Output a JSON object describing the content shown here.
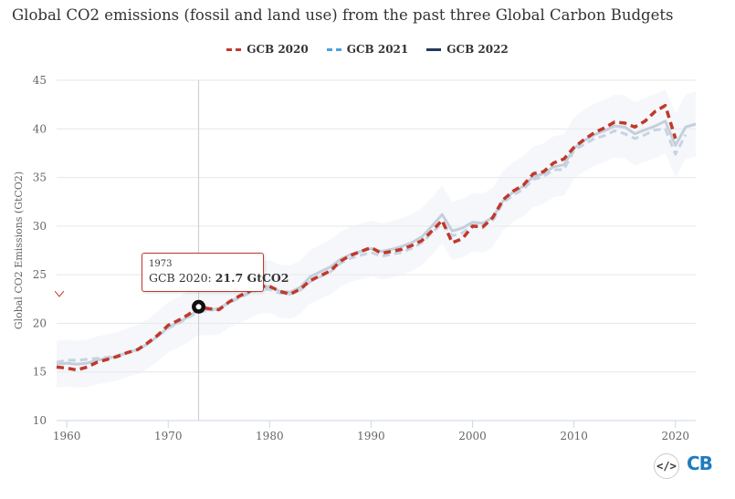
{
  "title": "Global CO2 emissions (fossil and land use) from the past three Global Carbon Budgets",
  "legend": [
    {
      "label": "GCB 2020",
      "color": "#c0392b",
      "style": "dashed"
    },
    {
      "label": "GCB 2021",
      "color": "#4aa3df",
      "style": "dashed"
    },
    {
      "label": "GCB 2022",
      "color": "#1f3b5b",
      "style": "solid"
    }
  ],
  "tooltip": {
    "year": "1973",
    "series": "GCB 2020:",
    "value": "21.7 GtCO2"
  },
  "embed_label": "</>",
  "logo_text": "CB",
  "chart_data": {
    "type": "line",
    "title": "Global CO2 emissions (fossil and land use) from the past three Global Carbon Budgets",
    "xlabel": "",
    "ylabel": "Global CO2 Emissions (GtCO2)",
    "xlim": [
      1959,
      2022
    ],
    "ylim": [
      10,
      45
    ],
    "xticks": [
      1960,
      1970,
      1980,
      1990,
      2000,
      2010,
      2020
    ],
    "yticks": [
      10,
      15,
      20,
      25,
      30,
      35,
      40,
      45
    ],
    "grid": true,
    "legend_position": "top-center",
    "highlight": {
      "year": 1973,
      "series": "GCB 2020",
      "value": 21.7
    },
    "series": [
      {
        "name": "GCB 2020",
        "color": "#c0392b",
        "style": "dashed",
        "x": [
          1959,
          1960,
          1961,
          1962,
          1963,
          1964,
          1965,
          1966,
          1967,
          1968,
          1969,
          1970,
          1971,
          1972,
          1973,
          1974,
          1975,
          1976,
          1977,
          1978,
          1979,
          1980,
          1981,
          1982,
          1983,
          1984,
          1985,
          1986,
          1987,
          1988,
          1989,
          1990,
          1991,
          1992,
          1993,
          1994,
          1995,
          1996,
          1997,
          1998,
          1999,
          2000,
          2001,
          2002,
          2003,
          2004,
          2005,
          2006,
          2007,
          2008,
          2009,
          2010,
          2011,
          2012,
          2013,
          2014,
          2015,
          2016,
          2017,
          2018,
          2019,
          2020
        ],
        "y": [
          15.5,
          15.4,
          15.2,
          15.5,
          16.0,
          16.3,
          16.6,
          17.0,
          17.3,
          18.0,
          18.8,
          19.8,
          20.3,
          20.9,
          21.7,
          21.5,
          21.4,
          22.2,
          22.8,
          23.3,
          23.8,
          23.8,
          23.3,
          23.0,
          23.5,
          24.4,
          24.9,
          25.4,
          26.4,
          27.0,
          27.4,
          27.8,
          27.2,
          27.4,
          27.6,
          28.0,
          28.5,
          29.5,
          30.6,
          28.3,
          28.7,
          30.0,
          29.9,
          30.9,
          32.7,
          33.6,
          34.2,
          35.4,
          35.6,
          36.5,
          36.9,
          38.1,
          38.9,
          39.6,
          40.1,
          40.7,
          40.6,
          40.2,
          40.8,
          41.8,
          42.4,
          39.0
        ]
      },
      {
        "name": "GCB 2021",
        "color": "#4aa3df",
        "style": "dashed",
        "x": [
          1959,
          1960,
          1961,
          1962,
          1963,
          1964,
          1965,
          1966,
          1967,
          1968,
          1969,
          1970,
          1971,
          1972,
          1973,
          1974,
          1975,
          1976,
          1977,
          1978,
          1979,
          1980,
          1981,
          1982,
          1983,
          1984,
          1985,
          1986,
          1987,
          1988,
          1989,
          1990,
          1991,
          1992,
          1993,
          1994,
          1995,
          1996,
          1997,
          1998,
          1999,
          2000,
          2001,
          2002,
          2003,
          2004,
          2005,
          2006,
          2007,
          2008,
          2009,
          2010,
          2011,
          2012,
          2013,
          2014,
          2015,
          2016,
          2017,
          2018,
          2019,
          2020,
          2021
        ],
        "y": [
          16.0,
          16.2,
          16.2,
          16.3,
          16.4,
          16.5,
          16.7,
          17.0,
          17.3,
          17.9,
          18.7,
          19.5,
          20.0,
          20.6,
          21.2,
          21.3,
          21.5,
          22.1,
          22.6,
          23.1,
          23.5,
          23.5,
          23.1,
          23.0,
          23.4,
          24.3,
          24.8,
          25.3,
          26.2,
          26.7,
          27.0,
          27.3,
          26.9,
          27.1,
          27.3,
          27.7,
          28.3,
          29.3,
          30.3,
          29.0,
          29.3,
          30.1,
          30.0,
          30.6,
          32.4,
          33.2,
          33.8,
          34.8,
          35.1,
          35.8,
          35.8,
          37.8,
          38.4,
          39.0,
          39.3,
          39.8,
          39.5,
          39.0,
          39.4,
          39.9,
          40.0,
          37.4,
          39.4
        ]
      },
      {
        "name": "GCB 2022",
        "color": "#1f3b5b",
        "style": "solid",
        "x": [
          1959,
          1960,
          1961,
          1962,
          1963,
          1964,
          1965,
          1966,
          1967,
          1968,
          1969,
          1970,
          1971,
          1972,
          1973,
          1974,
          1975,
          1976,
          1977,
          1978,
          1979,
          1980,
          1981,
          1982,
          1983,
          1984,
          1985,
          1986,
          1987,
          1988,
          1989,
          1990,
          1991,
          1992,
          1993,
          1994,
          1995,
          1996,
          1997,
          1998,
          1999,
          2000,
          2001,
          2002,
          2003,
          2004,
          2005,
          2006,
          2007,
          2008,
          2009,
          2010,
          2011,
          2012,
          2013,
          2014,
          2015,
          2016,
          2017,
          2018,
          2019,
          2020,
          2021,
          2022
        ],
        "y": [
          15.8,
          15.9,
          15.8,
          15.9,
          16.2,
          16.4,
          16.6,
          17.0,
          17.3,
          17.9,
          18.7,
          19.6,
          20.1,
          20.7,
          21.4,
          21.4,
          21.5,
          22.2,
          22.7,
          23.2,
          23.7,
          23.8,
          23.3,
          23.2,
          23.7,
          24.8,
          25.3,
          25.8,
          26.6,
          27.1,
          27.4,
          27.7,
          27.4,
          27.6,
          27.9,
          28.3,
          28.9,
          30.0,
          31.2,
          29.5,
          29.8,
          30.4,
          30.3,
          30.9,
          32.6,
          33.5,
          34.1,
          35.1,
          35.4,
          36.1,
          36.3,
          38.0,
          38.8,
          39.4,
          39.8,
          40.3,
          40.2,
          39.5,
          39.9,
          40.3,
          40.8,
          38.3,
          40.2,
          40.5
        ]
      }
    ]
  }
}
